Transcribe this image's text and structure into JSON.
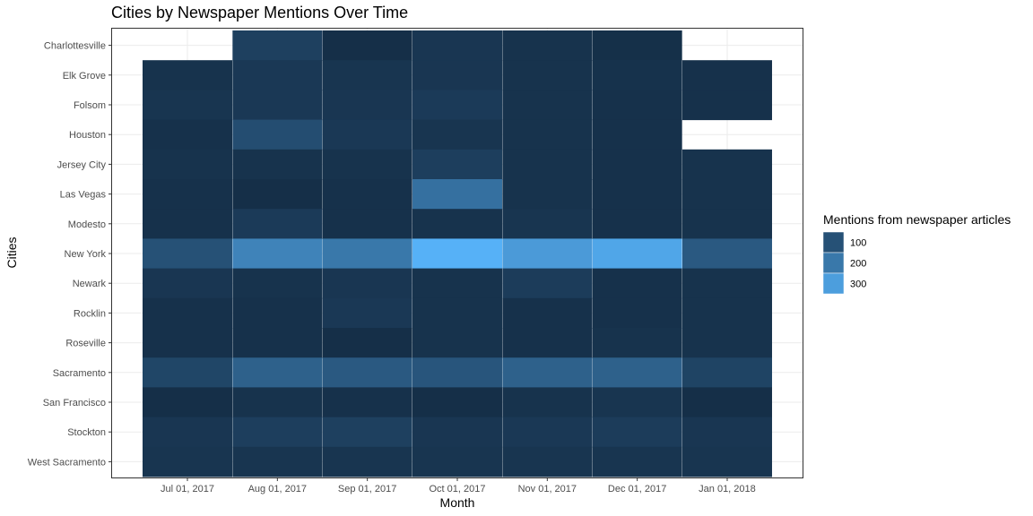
{
  "chart_data": {
    "type": "heatmap",
    "title": "Cities by Newspaper Mentions Over Time",
    "xlabel": "Month",
    "ylabel": "Cities",
    "x_categories": [
      "Jul 01, 2017",
      "Aug 01, 2017",
      "Sep 01, 2017",
      "Oct 01, 2017",
      "Nov 01, 2017",
      "Dec 01, 2017",
      "Jan 01, 2018"
    ],
    "y_categories": [
      "Charlottesville",
      "Elk Grove",
      "Folsom",
      "Houston",
      "Jersey City",
      "Las Vegas",
      "Modesto",
      "New York",
      "Newark",
      "Rocklin",
      "Roseville",
      "Sacramento",
      "San Francisco",
      "Stockton",
      "West Sacramento"
    ],
    "values": [
      [
        null,
        55,
        10,
        30,
        20,
        12,
        null
      ],
      [
        20,
        35,
        25,
        30,
        20,
        18,
        15
      ],
      [
        25,
        35,
        30,
        40,
        20,
        15,
        15
      ],
      [
        15,
        90,
        35,
        25,
        20,
        15,
        null
      ],
      [
        20,
        20,
        20,
        50,
        20,
        15,
        20
      ],
      [
        15,
        10,
        15,
        180,
        20,
        15,
        20
      ],
      [
        15,
        40,
        15,
        20,
        25,
        15,
        20
      ],
      [
        100,
        230,
        200,
        350,
        290,
        320,
        120
      ],
      [
        30,
        20,
        30,
        20,
        45,
        15,
        20
      ],
      [
        15,
        15,
        35,
        20,
        15,
        15,
        20
      ],
      [
        15,
        15,
        10,
        20,
        15,
        20,
        20
      ],
      [
        70,
        140,
        120,
        110,
        140,
        140,
        65
      ],
      [
        10,
        20,
        15,
        10,
        20,
        25,
        10
      ],
      [
        30,
        50,
        55,
        30,
        35,
        45,
        30
      ],
      [
        25,
        25,
        25,
        25,
        25,
        25,
        25
      ]
    ],
    "color_scale": {
      "low_color": "#132b43",
      "high_color": "#56b1f7",
      "domain": [
        0,
        350
      ]
    },
    "legend": {
      "title": "Mentions from newspaper articles",
      "breaks": [
        100,
        200,
        300
      ],
      "position": "right"
    },
    "grid": true
  }
}
